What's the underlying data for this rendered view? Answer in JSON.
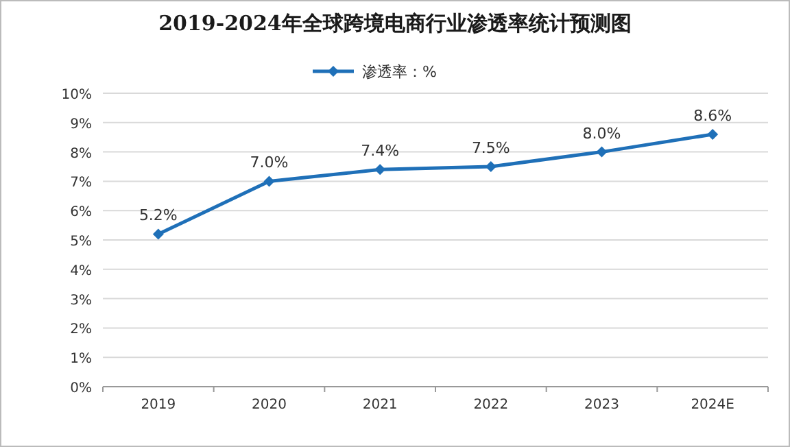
{
  "chart_data": {
    "type": "line",
    "title": "2019-2024年全球跨境电商行业渗透率统计预测图",
    "categories": [
      "2019",
      "2020",
      "2021",
      "2022",
      "2023",
      "2024E"
    ],
    "series": [
      {
        "name": "渗透率：%",
        "color": "#1f70b8",
        "values": [
          5.2,
          7.0,
          7.4,
          7.5,
          8.0,
          8.6
        ],
        "value_labels": [
          "5.2%",
          "7.0%",
          "7.4%",
          "7.5%",
          "8.0%",
          "8.6%"
        ]
      }
    ],
    "ylim": [
      0,
      10
    ],
    "yticks": [
      {
        "value": 0,
        "label": "0%"
      },
      {
        "value": 1,
        "label": "1%"
      },
      {
        "value": 2,
        "label": "2%"
      },
      {
        "value": 3,
        "label": "3%"
      },
      {
        "value": 4,
        "label": "4%"
      },
      {
        "value": 5,
        "label": "5%"
      },
      {
        "value": 6,
        "label": "6%"
      },
      {
        "value": 7,
        "label": "7%"
      },
      {
        "value": 8,
        "label": "8%"
      },
      {
        "value": 9,
        "label": "9%"
      },
      {
        "value": 10,
        "label": "10%"
      }
    ],
    "grid": "y",
    "legend": "top",
    "marker": "diamond",
    "line_style": "solid"
  }
}
